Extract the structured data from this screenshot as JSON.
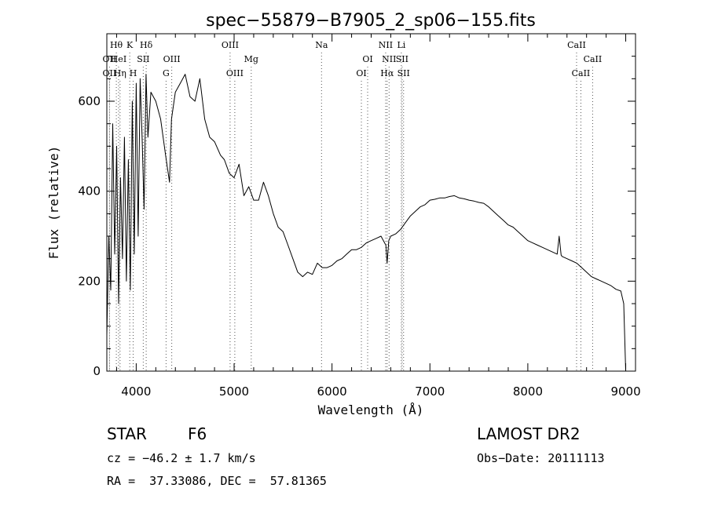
{
  "chart_data": {
    "type": "line",
    "title": "spec−55879−B7905_2_sp06−155.fits",
    "xlabel": "Wavelength (Å)",
    "ylabel": "Flux (relative)",
    "xlim": [
      3700,
      9100
    ],
    "ylim": [
      0,
      750
    ],
    "xticks": [
      4000,
      5000,
      6000,
      7000,
      8000,
      9000
    ],
    "yticks": [
      0,
      200,
      400,
      600
    ],
    "series": [
      {
        "name": "spectrum",
        "x": [
          3700,
          3720,
          3740,
          3760,
          3780,
          3800,
          3820,
          3840,
          3860,
          3880,
          3900,
          3920,
          3940,
          3960,
          3980,
          4000,
          4020,
          4040,
          4060,
          4080,
          4100,
          4120,
          4150,
          4200,
          4250,
          4300,
          4340,
          4360,
          4400,
          4450,
          4500,
          4550,
          4600,
          4650,
          4700,
          4750,
          4800,
          4861,
          4900,
          4950,
          5000,
          5050,
          5100,
          5150,
          5200,
          5250,
          5300,
          5350,
          5400,
          5450,
          5500,
          5550,
          5600,
          5650,
          5700,
          5750,
          5800,
          5850,
          5900,
          5950,
          6000,
          6050,
          6100,
          6150,
          6200,
          6250,
          6300,
          6350,
          6400,
          6450,
          6500,
          6550,
          6563,
          6580,
          6600,
          6650,
          6700,
          6750,
          6800,
          6850,
          6900,
          6950,
          7000,
          7050,
          7100,
          7150,
          7200,
          7250,
          7300,
          7350,
          7400,
          7450,
          7500,
          7550,
          7600,
          7650,
          7700,
          7750,
          7800,
          7850,
          7900,
          7950,
          8000,
          8050,
          8100,
          8150,
          8200,
          8250,
          8300,
          8320,
          8340,
          8350,
          8400,
          8450,
          8500,
          8550,
          8600,
          8650,
          8700,
          8750,
          8800,
          8850,
          8900,
          8950,
          8980,
          9000
        ],
        "y": [
          80,
          300,
          180,
          550,
          260,
          500,
          150,
          430,
          250,
          520,
          200,
          470,
          180,
          600,
          260,
          640,
          300,
          650,
          520,
          360,
          660,
          520,
          620,
          600,
          560,
          480,
          420,
          560,
          620,
          640,
          660,
          610,
          600,
          650,
          560,
          520,
          510,
          480,
          470,
          440,
          430,
          460,
          390,
          410,
          380,
          380,
          420,
          390,
          350,
          320,
          310,
          280,
          250,
          220,
          210,
          220,
          215,
          240,
          230,
          230,
          235,
          245,
          250,
          260,
          270,
          270,
          275,
          285,
          290,
          295,
          300,
          280,
          240,
          290,
          300,
          305,
          315,
          330,
          345,
          355,
          365,
          370,
          380,
          382,
          385,
          385,
          388,
          390,
          385,
          383,
          380,
          378,
          375,
          373,
          365,
          355,
          345,
          335,
          325,
          320,
          310,
          300,
          290,
          285,
          280,
          275,
          270,
          265,
          260,
          300,
          258,
          255,
          250,
          245,
          240,
          230,
          220,
          210,
          205,
          200,
          195,
          190,
          182,
          178,
          150,
          0
        ]
      }
    ],
    "line_markers": [
      {
        "label": "Hθ",
        "wave": 3797,
        "row": 1
      },
      {
        "label": "K",
        "wave": 3934,
        "row": 1
      },
      {
        "label": "Hδ",
        "wave": 4102,
        "row": 1
      },
      {
        "label": "OII",
        "wave": 3727,
        "row": 2
      },
      {
        "label": "HeI",
        "wave": 3820,
        "row": 2
      },
      {
        "label": "SII",
        "wave": 4072,
        "row": 2
      },
      {
        "label": "OIII",
        "wave": 4363,
        "row": 2
      },
      {
        "label": "OII",
        "wave": 3727,
        "row": 3
      },
      {
        "label": "Hη",
        "wave": 3835,
        "row": 3
      },
      {
        "label": "H",
        "wave": 3969,
        "row": 3
      },
      {
        "label": "G",
        "wave": 4305,
        "row": 3
      },
      {
        "label": "OIII",
        "wave": 4959,
        "row": 1
      },
      {
        "label": "Mg",
        "wave": 5175,
        "row": 2
      },
      {
        "label": "OIII",
        "wave": 5007,
        "row": 3
      },
      {
        "label": "Na",
        "wave": 5893,
        "row": 1
      },
      {
        "label": "OI",
        "wave": 6364,
        "row": 2
      },
      {
        "label": "OI",
        "wave": 6300,
        "row": 3
      },
      {
        "label": "NII",
        "wave": 6548,
        "row": 1
      },
      {
        "label": "Li",
        "wave": 6708,
        "row": 1
      },
      {
        "label": "NII",
        "wave": 6583,
        "row": 2
      },
      {
        "label": "SII",
        "wave": 6716,
        "row": 2
      },
      {
        "label": "Hα",
        "wave": 6563,
        "row": 3
      },
      {
        "label": "SII",
        "wave": 6731,
        "row": 3
      },
      {
        "label": "CaII",
        "wave": 8498,
        "row": 1
      },
      {
        "label": "CaII",
        "wave": 8662,
        "row": 2
      },
      {
        "label": "CaII",
        "wave": 8542,
        "row": 3
      }
    ]
  },
  "info": {
    "class": "STAR",
    "subclass": "F6",
    "survey": "LAMOST DR2",
    "cz": "cz = −46.2 ± 1.7 km/s",
    "obs_date": "Obs−Date: 20111113",
    "radec": "RA =  37.33086, DEC =  57.81365"
  }
}
